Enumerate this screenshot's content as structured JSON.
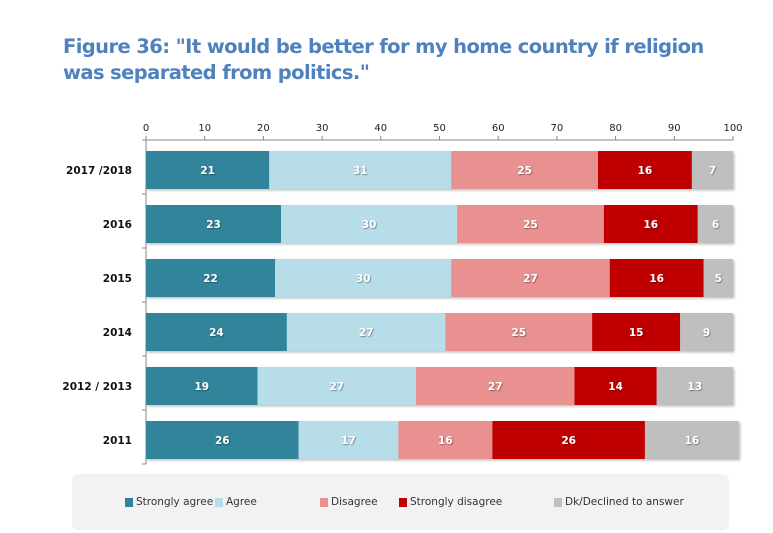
{
  "title": "Figure 36: \"It would be better for my home country if religion was separated from politics.\"",
  "chart_data": {
    "type": "bar",
    "orientation": "horizontal",
    "stacked": true,
    "title": "Figure 36: \"It would be better for my home country if religion was separated from politics.\"",
    "xlabel": "",
    "ylabel": "",
    "xlim": [
      0,
      100
    ],
    "xticks": [
      0,
      10,
      20,
      30,
      40,
      50,
      60,
      70,
      80,
      90,
      100
    ],
    "x_axis_position": "top",
    "grid": false,
    "legend_position": "bottom",
    "categories": [
      "2017 /2018",
      "2016",
      "2015",
      "2014",
      "2012 / 2013",
      "2011"
    ],
    "series": [
      {
        "name": "Strongly agree",
        "color": "#31849b",
        "values": [
          21,
          23,
          22,
          24,
          19,
          26
        ]
      },
      {
        "name": "Agree",
        "color": "#b7dde8",
        "values": [
          31,
          30,
          30,
          27,
          27,
          17
        ]
      },
      {
        "name": "Disagree",
        "color": "#e99090",
        "values": [
          25,
          25,
          27,
          25,
          27,
          16
        ]
      },
      {
        "name": "Strongly disagree",
        "color": "#c00000",
        "values": [
          16,
          16,
          16,
          15,
          14,
          26
        ]
      },
      {
        "name": "Dk/Declined to answer",
        "color": "#bfbfbf",
        "values": [
          7,
          6,
          5,
          9,
          13,
          16
        ]
      }
    ]
  }
}
